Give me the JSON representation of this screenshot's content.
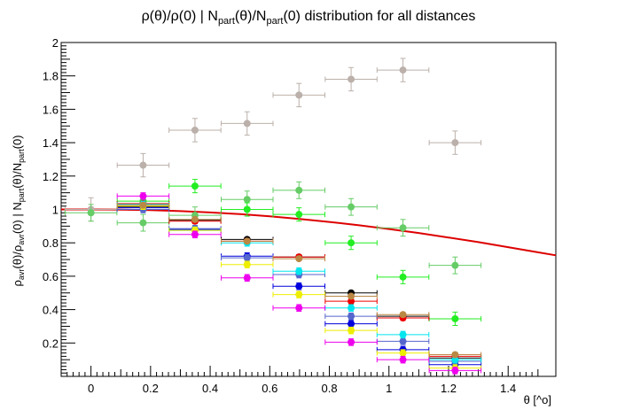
{
  "chart_data": {
    "type": "scatter",
    "title": "ρ(θ)/ρ(0) | N_part(θ)/N_part(0) distribution for all distances",
    "title_parts": {
      "a": "ρ(θ)/ρ(0) | N",
      "a_sub": "part",
      "b": "(θ)/N",
      "b_sub": "part",
      "c": "(0) distribution for all distances"
    },
    "xlabel": "θ [^o]",
    "ylabel_parts": {
      "p1": "ρ",
      "s1": "avr",
      "p2": "(θ)/ρ",
      "s2": "avr",
      "p3": "(0) | N",
      "s3": "part",
      "p4": "(θ)/N",
      "s4": "part",
      "p5": "(0)"
    },
    "xlim": [
      -0.1,
      1.56
    ],
    "ylim": [
      0,
      2
    ],
    "x_ticks": [
      0,
      0.2,
      0.4,
      0.6,
      0.8,
      1,
      1.2,
      1.4
    ],
    "x_tick_labels": [
      "0",
      "0.2",
      "0.4",
      "0.6",
      "0.8",
      "1",
      "1.2",
      "1.4"
    ],
    "y_ticks": [
      0.2,
      0.4,
      0.6,
      0.8,
      1,
      1.2,
      1.4,
      1.6,
      1.8,
      2
    ],
    "y_tick_labels": [
      "0.2",
      "0.4",
      "0.6",
      "0.8",
      "1",
      "1.2",
      "1.4",
      "1.6",
      "1.8",
      "2"
    ],
    "grid": false,
    "x_error": 0.087,
    "curve": {
      "color": "#dd0000",
      "x": [
        -0.1,
        0,
        0.1,
        0.2,
        0.3,
        0.4,
        0.5,
        0.6,
        0.7,
        0.8,
        0.9,
        1.0,
        1.1,
        1.2,
        1.3,
        1.4,
        1.5,
        1.56
      ],
      "y": [
        1.0,
        1.0,
        0.999,
        0.996,
        0.99,
        0.982,
        0.972,
        0.959,
        0.943,
        0.925,
        0.905,
        0.883,
        0.859,
        0.832,
        0.804,
        0.774,
        0.743,
        0.725
      ]
    },
    "series": [
      {
        "color": "#bbb0aa",
        "ey": 0.07,
        "x": [
          0,
          0.175,
          0.349,
          0.524,
          0.698,
          0.873,
          1.047,
          1.222
        ],
        "y": [
          1.0,
          1.265,
          1.475,
          1.515,
          1.685,
          1.78,
          1.835,
          1.4
        ]
      },
      {
        "color": "#66cc66",
        "ey": 0.05,
        "x": [
          0,
          0.175,
          0.349,
          0.524,
          0.698,
          0.873,
          1.047,
          1.222
        ],
        "y": [
          0.98,
          0.92,
          0.965,
          1.06,
          1.115,
          1.015,
          0.89,
          0.665
        ]
      },
      {
        "color": "#22ee22",
        "ey": 0.04,
        "x": [
          0.175,
          0.349,
          0.524,
          0.698,
          0.873,
          1.047,
          1.222
        ],
        "y": [
          1.05,
          1.14,
          1.0,
          0.97,
          0.8,
          0.595,
          0.345
        ]
      },
      {
        "color": "#000000",
        "ey": 0.012,
        "x": [
          0.175,
          0.349,
          0.524,
          0.698,
          0.873,
          1.047,
          1.222
        ],
        "y": [
          1.015,
          0.935,
          0.82,
          0.715,
          0.5,
          0.36,
          0.11
        ]
      },
      {
        "color": "#ee0000",
        "ey": 0.015,
        "x": [
          0.175,
          0.349,
          0.524,
          0.698,
          0.873,
          1.047,
          1.222
        ],
        "y": [
          1.035,
          0.93,
          0.81,
          0.715,
          0.45,
          0.35,
          0.12
        ]
      },
      {
        "color": "#0000dd",
        "ey": 0.02,
        "x": [
          0.175,
          0.349,
          0.524,
          0.698,
          0.873,
          1.047,
          1.222
        ],
        "y": [
          1.01,
          0.88,
          0.72,
          0.54,
          0.315,
          0.16,
          0.07
        ]
      },
      {
        "color": "#5566cc",
        "ey": 0.02,
        "x": [
          0.175,
          0.349,
          0.524,
          0.698,
          0.873,
          1.047,
          1.222
        ],
        "y": [
          1.0,
          0.885,
          0.71,
          0.61,
          0.36,
          0.21,
          0.09
        ]
      },
      {
        "color": "#00e5ee",
        "ey": 0.02,
        "x": [
          0.175,
          0.349,
          0.524,
          0.698,
          0.873,
          1.047,
          1.222
        ],
        "y": [
          1.03,
          0.875,
          0.8,
          0.63,
          0.41,
          0.25,
          0.1
        ]
      },
      {
        "color": "#eeee00",
        "ey": 0.02,
        "x": [
          0.175,
          0.349,
          0.524,
          0.698,
          0.873,
          1.047,
          1.222
        ],
        "y": [
          1.02,
          0.875,
          0.67,
          0.49,
          0.275,
          0.14,
          0.05
        ]
      },
      {
        "color": "#ee00ee",
        "ey": 0.02,
        "x": [
          0.175,
          0.349,
          0.524,
          0.698,
          0.873,
          1.047,
          1.222
        ],
        "y": [
          1.08,
          0.85,
          0.59,
          0.41,
          0.205,
          0.1,
          0.035
        ]
      },
      {
        "color": "#bb8844",
        "ey": 0.01,
        "x": [
          0.175,
          0.349,
          0.524,
          0.698,
          0.873,
          1.047,
          1.222
        ],
        "y": [
          1.025,
          0.94,
          0.81,
          0.705,
          0.48,
          0.37,
          0.13
        ]
      }
    ]
  }
}
